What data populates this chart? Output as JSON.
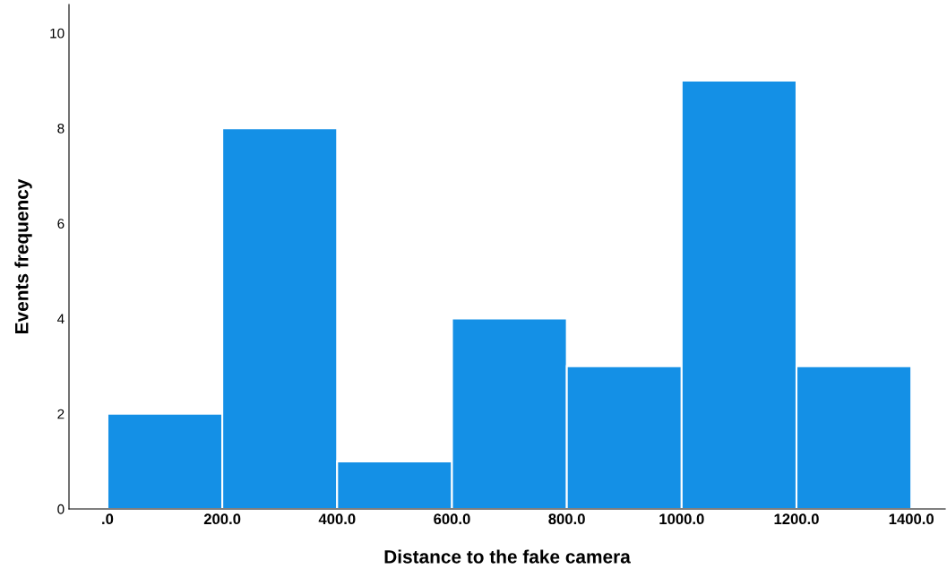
{
  "chart_data": {
    "type": "histogram",
    "xlabel": "Distance to the fake camera",
    "ylabel": "Events frequency",
    "bins": [
      0,
      200,
      400,
      600,
      800,
      1000,
      1200,
      1400
    ],
    "values": [
      2,
      8,
      1,
      4,
      3,
      9,
      3
    ],
    "color": "#1490e6",
    "xlim": [
      -67,
      1459
    ],
    "ylim": [
      0,
      10.6
    ],
    "xticks": [
      {
        "value": 0,
        "label": ".0"
      },
      {
        "value": 200,
        "label": "200.0"
      },
      {
        "value": 400,
        "label": "400.0"
      },
      {
        "value": 600,
        "label": "600.0"
      },
      {
        "value": 800,
        "label": "800.0"
      },
      {
        "value": 1000,
        "label": "1000.0"
      },
      {
        "value": 1200,
        "label": "1200.0"
      },
      {
        "value": 1400,
        "label": "1400.0"
      }
    ],
    "yticks": [
      0,
      2,
      4,
      6,
      8,
      10
    ],
    "grid": false,
    "legend": false
  }
}
